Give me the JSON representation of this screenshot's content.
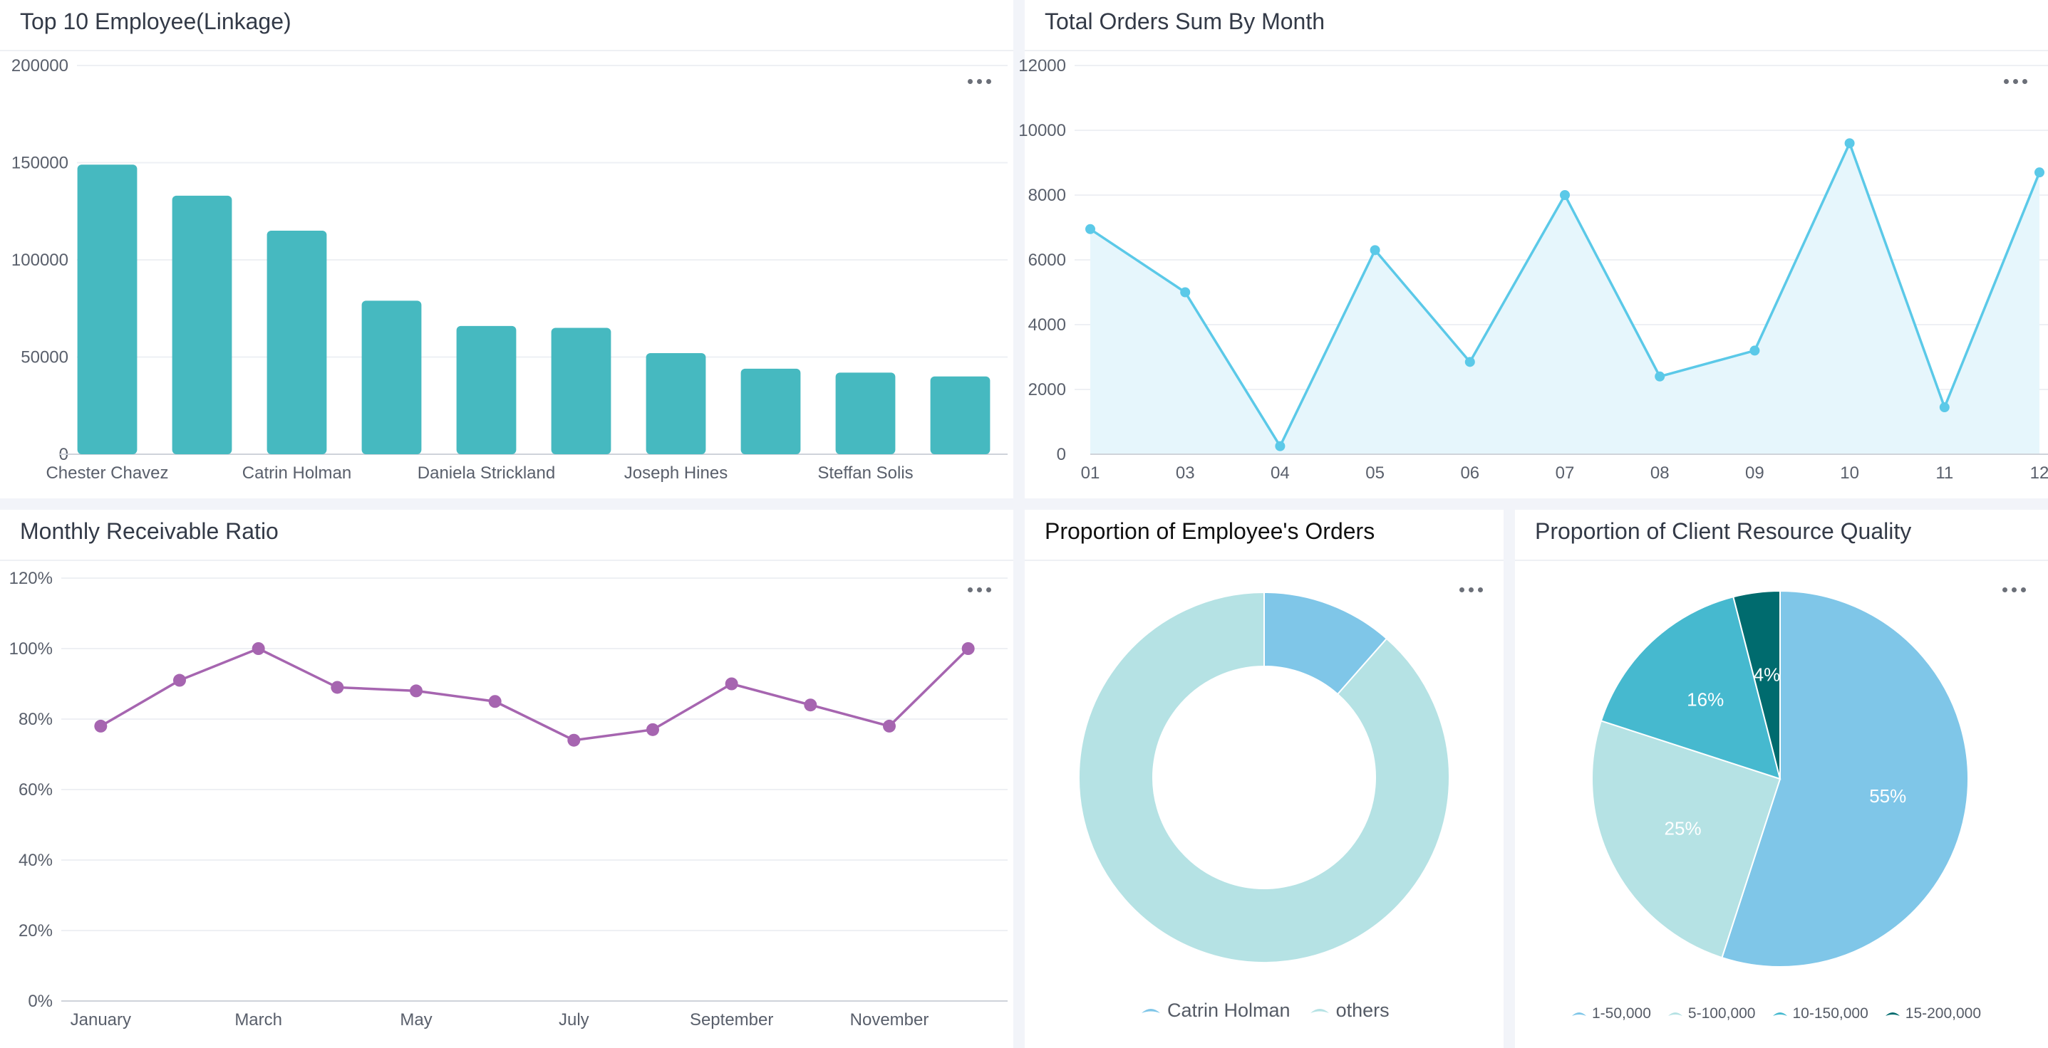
{
  "colors": {
    "bar": "#46b9c0",
    "line_orders": "#5bc9e8",
    "line_orders_fill": "#e6f6fc",
    "line_ratio": "#a665b0",
    "grid": "#eef0f4",
    "axis": "#cfd3da"
  },
  "panels": {
    "top_employee": {
      "title": "Top 10 Employee(Linkage)"
    },
    "total_orders": {
      "title": "Total Orders Sum By Month"
    },
    "receivable": {
      "title": "Monthly Receivable Ratio"
    },
    "employee_orders": {
      "title": "Proportion of Employee's Orders",
      "legend": [
        {
          "label": "Catrin Holman",
          "color": "#7fc6e8"
        },
        {
          "label": "others",
          "color": "#b5e2e4"
        }
      ]
    },
    "client_quality": {
      "title": "Proportion of Client Resource Quality",
      "legend": [
        {
          "label": "1-50,000",
          "color": "#7fc6e8"
        },
        {
          "label": "5-100,000",
          "color": "#b5e2e4"
        },
        {
          "label": "10-150,000",
          "color": "#46b9cf"
        },
        {
          "label": "15-200,000",
          "color": "#006b6e"
        }
      ]
    }
  },
  "chart_data": [
    {
      "type": "bar",
      "title": "Top 10 Employee(Linkage)",
      "categories": [
        "Chester Chavez",
        "",
        "Catrin Holman",
        "",
        "Daniela Strickland",
        "",
        "Joseph Hines",
        "",
        "Steffan Solis",
        ""
      ],
      "values": [
        149000,
        133000,
        115000,
        79000,
        66000,
        65000,
        52000,
        44000,
        42000,
        40000
      ],
      "ylim": [
        0,
        200000
      ],
      "yticks": [
        "0",
        "50000",
        "100000",
        "150000",
        "200000"
      ],
      "grid": true
    },
    {
      "type": "area",
      "title": "Total Orders Sum By Month",
      "x": [
        "01",
        "03",
        "04",
        "05",
        "06",
        "07",
        "08",
        "09",
        "10",
        "11",
        "12"
      ],
      "values": [
        6950,
        5000,
        250,
        6300,
        2850,
        8000,
        2400,
        3200,
        9600,
        1450,
        8700
      ],
      "ylim": [
        0,
        12000
      ],
      "yticks": [
        "0",
        "2000",
        "4000",
        "6000",
        "8000",
        "10000",
        "12000"
      ],
      "grid": true
    },
    {
      "type": "line",
      "title": "Monthly Receivable Ratio",
      "x": [
        "January",
        "",
        "March",
        "",
        "May",
        "",
        "July",
        "",
        "September",
        "",
        "November",
        ""
      ],
      "values": [
        78,
        91,
        100,
        89,
        88,
        85,
        74,
        77,
        90,
        84,
        78,
        100
      ],
      "ylim": [
        0,
        120
      ],
      "yticks": [
        "0%",
        "20%",
        "40%",
        "60%",
        "80%",
        "100%",
        "120%"
      ],
      "grid": true
    },
    {
      "type": "pie",
      "title": "Proportion of Employee's Orders",
      "labels": [
        "Catrin Holman",
        "others"
      ],
      "values": [
        11.5,
        88.5
      ],
      "donut": true
    },
    {
      "type": "pie",
      "title": "Proportion of Client Resource Quality",
      "labels": [
        "1-50,000",
        "5-100,000",
        "10-150,000",
        "15-200,000"
      ],
      "values": [
        55,
        25,
        16,
        4
      ],
      "slice_labels": [
        "55%",
        "25%",
        "16%",
        "4%"
      ]
    }
  ]
}
